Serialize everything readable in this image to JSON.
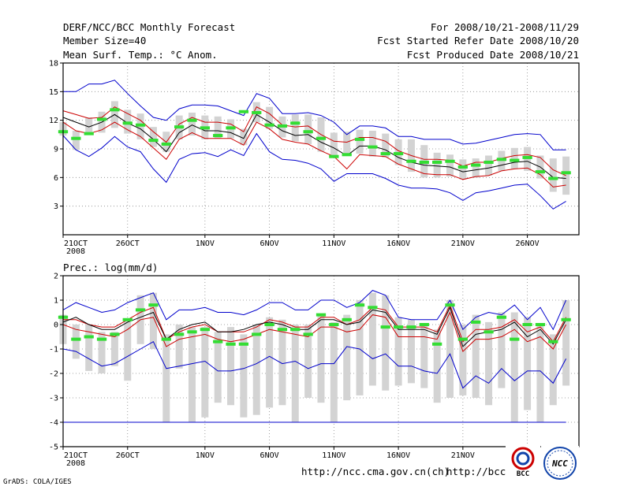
{
  "header": {
    "title": "DERF/NCC/BCC Monthly Forecast",
    "member_size": "Member Size=40",
    "variable": "Mean Surf. Temp.: °C Anom.",
    "period": "For 2008/10/21-2008/11/29",
    "refer_date": "Fcst Started Refer Date 2008/10/20",
    "produced_date": "Fcst Produced Date 2008/10/21"
  },
  "footer": {
    "grads": "GrADS: COLA/IGES",
    "url1": "http://ncc.cma.gov.cn(ch)",
    "url2": "http://bcc.",
    "logo_bcc": "BCC",
    "logo_ncc": "NCC"
  },
  "colors": {
    "envelope": "#0000cc",
    "spread": "#cc0000",
    "mean": "#000000",
    "box": "#d3d3d3",
    "obs": "#33dd33",
    "grid": "#888888"
  },
  "chart_data": [
    {
      "type": "line",
      "title": "Mean Surf. Temp.: °C Anom.",
      "ylim": [
        0,
        18
      ],
      "yticks": [
        3,
        6,
        9,
        12,
        15,
        18
      ],
      "xticks": [
        {
          "day": 1,
          "label": "21OCT",
          "sub": "2008"
        },
        {
          "day": 6,
          "label": "26OCT"
        },
        {
          "day": 12,
          "label": "1NOV"
        },
        {
          "day": 17,
          "label": "6NOV"
        },
        {
          "day": 22,
          "label": "11NOV"
        },
        {
          "day": 27,
          "label": "16NOV"
        },
        {
          "day": 32,
          "label": "21NOV"
        },
        {
          "day": 37,
          "label": "26NOV"
        }
      ],
      "days": [
        1,
        2,
        3,
        4,
        5,
        6,
        7,
        8,
        9,
        10,
        11,
        12,
        13,
        14,
        15,
        16,
        17,
        18,
        19,
        20,
        21,
        22,
        23,
        24,
        25,
        26,
        27,
        28,
        29,
        30,
        31,
        32,
        33,
        34,
        35,
        36,
        37,
        38,
        39,
        40
      ],
      "series": [
        {
          "name": "max",
          "values": [
            15,
            15,
            15.8,
            15.8,
            16.2,
            14.8,
            13.5,
            12.3,
            12.0,
            13.2,
            13.6,
            13.6,
            13.5,
            13.0,
            12.5,
            14.8,
            14.3,
            12.7,
            12.7,
            12.8,
            12.5,
            11.8,
            10.5,
            11.4,
            11.4,
            11.2,
            10.3,
            10.3,
            10.0,
            10.0,
            10.0,
            9.5,
            9.6,
            9.9,
            10.2,
            10.5,
            10.6,
            10.5,
            8.9,
            8.9
          ]
        },
        {
          "name": "upper",
          "values": [
            13.0,
            12.6,
            12.2,
            12.3,
            13.4,
            12.7,
            12.0,
            10.8,
            9.7,
            11.6,
            12.3,
            11.8,
            11.8,
            11.6,
            10.8,
            13.4,
            12.7,
            11.5,
            11.3,
            11.4,
            10.5,
            9.8,
            9.7,
            10.2,
            10.2,
            9.8,
            8.8,
            8.3,
            7.9,
            7.9,
            7.8,
            7.2,
            7.6,
            7.6,
            8.0,
            8.3,
            8.4,
            8.1,
            6.8,
            6.2
          ]
        },
        {
          "name": "mean",
          "values": [
            12.3,
            11.8,
            11.3,
            11.8,
            12.6,
            11.7,
            11.1,
            10.0,
            8.7,
            10.7,
            11.5,
            10.9,
            10.9,
            10.7,
            10.1,
            12.6,
            11.8,
            10.9,
            10.4,
            10.5,
            9.7,
            9.1,
            8.3,
            9.3,
            9.3,
            8.9,
            8.1,
            7.6,
            7.3,
            7.2,
            7.1,
            6.6,
            6.8,
            7.0,
            7.3,
            7.6,
            7.7,
            7.1,
            6.0,
            5.9
          ]
        },
        {
          "name": "lower",
          "values": [
            11.8,
            10.9,
            10.6,
            11.0,
            11.8,
            11.0,
            10.3,
            9.1,
            7.9,
            10.0,
            10.7,
            10.1,
            10.1,
            10.1,
            9.4,
            11.8,
            11.1,
            10.0,
            9.7,
            9.5,
            8.8,
            8.2,
            6.9,
            8.4,
            8.3,
            8.2,
            7.4,
            6.9,
            6.4,
            6.3,
            6.3,
            5.8,
            6.1,
            6.2,
            6.7,
            6.9,
            7.0,
            6.3,
            5.0,
            5.2
          ]
        },
        {
          "name": "min",
          "values": [
            10.4,
            8.9,
            8.2,
            9.1,
            10.3,
            9.2,
            8.7,
            6.9,
            5.5,
            7.9,
            8.5,
            8.6,
            8.2,
            8.9,
            8.3,
            10.6,
            8.7,
            7.9,
            7.8,
            7.5,
            6.9,
            5.6,
            6.4,
            6.4,
            6.4,
            5.9,
            5.2,
            4.9,
            4.9,
            4.8,
            4.4,
            3.6,
            4.4,
            4.6,
            4.9,
            5.2,
            5.3,
            4.1,
            2.7,
            3.5
          ]
        }
      ],
      "boxes": [
        [
          11.8,
          10.4
        ],
        [
          10.9,
          8.9
        ],
        [
          12.3,
          10.5
        ],
        [
          12.9,
          10.7
        ],
        [
          14.0,
          11.2
        ],
        [
          13.1,
          10.6
        ],
        [
          12.7,
          10.0
        ],
        [
          11.3,
          9.2
        ],
        [
          10.8,
          8.7
        ],
        [
          12.5,
          10.0
        ],
        [
          12.8,
          10.4
        ],
        [
          12.5,
          10.0
        ],
        [
          12.4,
          10.1
        ],
        [
          12.1,
          10.1
        ],
        [
          11.1,
          9.4
        ],
        [
          13.9,
          11.8
        ],
        [
          13.4,
          11.1
        ],
        [
          12.4,
          10.2
        ],
        [
          12.6,
          9.8
        ],
        [
          12.6,
          9.5
        ],
        [
          12.3,
          8.7
        ],
        [
          10.7,
          8.3
        ],
        [
          10.8,
          8.3
        ],
        [
          11.0,
          8.5
        ],
        [
          10.9,
          8.2
        ],
        [
          10.6,
          8.1
        ],
        [
          10.0,
          7.3
        ],
        [
          10.0,
          6.6
        ],
        [
          9.4,
          6.0
        ],
        [
          8.6,
          6.0
        ],
        [
          8.4,
          6.1
        ],
        [
          7.9,
          5.8
        ],
        [
          8.0,
          6.0
        ],
        [
          8.3,
          6.2
        ],
        [
          8.8,
          6.7
        ],
        [
          9.1,
          6.9
        ],
        [
          9.2,
          6.7
        ],
        [
          8.3,
          5.9
        ],
        [
          8.0,
          4.5
        ],
        [
          8.2,
          4.2
        ]
      ],
      "obs": [
        10.8,
        10.1,
        10.6,
        12.1,
        13.1,
        11.7,
        11.5,
        9.9,
        9.5,
        11.3,
        12.0,
        11.2,
        10.4,
        11.2,
        12.9,
        12.8,
        11.5,
        11.4,
        11.7,
        10.8,
        10.1,
        8.2,
        8.4,
        10.0,
        9.2,
        8.5,
        8.5,
        7.7,
        7.6,
        7.6,
        7.7,
        7.1,
        7.3,
        7.6,
        7.9,
        7.8,
        8.1,
        6.6,
        5.9,
        6.5
      ]
    },
    {
      "type": "line",
      "title": "Prec.: log(mm/d)",
      "ylim": [
        -5,
        2
      ],
      "yticks": [
        -5,
        -4,
        -3,
        -2,
        -1,
        0,
        1,
        2
      ],
      "xticks": [
        {
          "day": 1,
          "label": "21OCT",
          "sub": "2008"
        },
        {
          "day": 6,
          "label": "26OCT"
        },
        {
          "day": 12,
          "label": "1NOV"
        },
        {
          "day": 17,
          "label": "6NOV"
        },
        {
          "day": 22,
          "label": "11NOV"
        },
        {
          "day": 27,
          "label": "16NOV"
        },
        {
          "day": 32,
          "label": "21NOV"
        },
        {
          "day": 37,
          "label": "26NOV"
        }
      ],
      "days": [
        1,
        2,
        3,
        4,
        5,
        6,
        7,
        8,
        9,
        10,
        11,
        12,
        13,
        14,
        15,
        16,
        17,
        18,
        19,
        20,
        21,
        22,
        23,
        24,
        25,
        26,
        27,
        28,
        29,
        30,
        31,
        32,
        33,
        34,
        35,
        36,
        37,
        38,
        39,
        40
      ],
      "series": [
        {
          "name": "max",
          "values": [
            0.6,
            0.9,
            0.7,
            0.5,
            0.6,
            0.9,
            1.1,
            1.3,
            0.2,
            0.6,
            0.6,
            0.7,
            0.5,
            0.5,
            0.4,
            0.6,
            0.9,
            0.9,
            0.6,
            0.6,
            1.0,
            1.0,
            0.7,
            0.9,
            1.4,
            1.2,
            0.3,
            0.2,
            0.2,
            0.2,
            1.0,
            -0.2,
            0.3,
            0.5,
            0.4,
            0.8,
            0.2,
            0.7,
            -0.2,
            1.0
          ]
        },
        {
          "name": "upper",
          "values": [
            0.2,
            0.2,
            0.0,
            -0.1,
            -0.1,
            0.2,
            0.5,
            0.7,
            -0.6,
            -0.3,
            -0.1,
            0.0,
            -0.3,
            -0.3,
            -0.3,
            -0.1,
            0.2,
            0.1,
            -0.1,
            -0.1,
            0.3,
            0.3,
            0.0,
            0.2,
            0.7,
            0.6,
            -0.1,
            -0.1,
            -0.1,
            -0.3,
            0.8,
            -0.7,
            -0.2,
            -0.2,
            -0.1,
            0.2,
            -0.3,
            -0.1,
            -0.7,
            0.3
          ]
        },
        {
          "name": "mean",
          "values": [
            0.1,
            0.3,
            0.0,
            -0.2,
            -0.2,
            0.1,
            0.3,
            0.5,
            -0.6,
            -0.2,
            0.0,
            0.1,
            -0.3,
            -0.3,
            -0.2,
            0.0,
            0.1,
            0.0,
            -0.2,
            -0.2,
            0.2,
            0.2,
            0.0,
            0.1,
            0.6,
            0.5,
            -0.2,
            -0.2,
            -0.2,
            -0.4,
            0.7,
            -0.9,
            -0.4,
            -0.3,
            -0.2,
            0.1,
            -0.5,
            -0.2,
            -0.8,
            0.2
          ]
        },
        {
          "name": "lower",
          "values": [
            0.0,
            -0.2,
            -0.3,
            -0.4,
            -0.5,
            -0.2,
            0.2,
            0.3,
            -0.9,
            -0.6,
            -0.5,
            -0.4,
            -0.6,
            -0.7,
            -0.6,
            -0.4,
            -0.2,
            -0.3,
            -0.4,
            -0.5,
            -0.1,
            -0.1,
            -0.3,
            -0.2,
            0.4,
            0.3,
            -0.5,
            -0.5,
            -0.5,
            -0.6,
            0.5,
            -1.1,
            -0.6,
            -0.6,
            -0.5,
            -0.2,
            -0.7,
            -0.5,
            -1.0,
            0.0
          ]
        },
        {
          "name": "min",
          "values": [
            -1.0,
            -1.1,
            -1.4,
            -1.7,
            -1.6,
            -1.3,
            -1.0,
            -0.7,
            -1.8,
            -1.7,
            -1.6,
            -1.5,
            -1.9,
            -1.9,
            -1.8,
            -1.6,
            -1.3,
            -1.6,
            -1.5,
            -1.8,
            -1.6,
            -1.6,
            -0.9,
            -1.0,
            -1.4,
            -1.2,
            -1.7,
            -1.7,
            -1.9,
            -2.0,
            -1.2,
            -2.6,
            -2.1,
            -2.4,
            -1.8,
            -2.3,
            -1.9,
            -1.9,
            -2.4,
            -1.4
          ]
        }
      ],
      "boxes": [
        [
          0.4,
          -0.8
        ],
        [
          0.0,
          -1.4
        ],
        [
          0.0,
          -1.9
        ],
        [
          -0.3,
          -2.0
        ],
        [
          -0.3,
          -1.7
        ],
        [
          0.2,
          -2.3
        ],
        [
          1.2,
          -0.8
        ],
        [
          1.3,
          -1.0
        ],
        [
          -0.4,
          -4.0
        ],
        [
          0.0,
          -1.8
        ],
        [
          -0.1,
          -4.0
        ],
        [
          -0.1,
          -3.8
        ],
        [
          -0.3,
          -3.2
        ],
        [
          -0.1,
          -3.3
        ],
        [
          -0.4,
          -3.8
        ],
        [
          0.0,
          -3.7
        ],
        [
          0.3,
          -3.4
        ],
        [
          0.2,
          -3.3
        ],
        [
          0.0,
          -4.0
        ],
        [
          0.0,
          -3.0
        ],
        [
          0.4,
          -3.2
        ],
        [
          0.1,
          -4.0
        ],
        [
          0.4,
          -3.1
        ],
        [
          1.0,
          -2.9
        ],
        [
          1.3,
          -2.5
        ],
        [
          1.2,
          -2.7
        ],
        [
          0.3,
          -2.5
        ],
        [
          0.2,
          -2.4
        ],
        [
          0.0,
          -2.6
        ],
        [
          -0.2,
          -3.2
        ],
        [
          1.0,
          -3.0
        ],
        [
          0.0,
          -2.9
        ],
        [
          0.4,
          -3.0
        ],
        [
          0.1,
          -3.3
        ],
        [
          0.5,
          -2.6
        ],
        [
          0.5,
          -4.0
        ],
        [
          0.3,
          -3.5
        ],
        [
          0.0,
          -4.0
        ],
        [
          -0.4,
          -3.3
        ],
        [
          1.0,
          -2.5
        ]
      ],
      "obs": [
        0.3,
        -0.6,
        -0.5,
        -0.6,
        -0.4,
        0.2,
        0.6,
        0.8,
        -0.6,
        -0.4,
        -0.3,
        -0.2,
        -0.7,
        -0.8,
        -0.8,
        -0.4,
        0.0,
        -0.2,
        -0.2,
        -0.4,
        0.4,
        0.0,
        0.2,
        0.8,
        0.7,
        -0.1,
        -0.1,
        -0.1,
        0.0,
        -0.8,
        0.8,
        -0.6,
        0.1,
        -0.3,
        0.3,
        -0.6,
        0.0,
        0.0,
        -0.7,
        0.2
      ]
    }
  ]
}
